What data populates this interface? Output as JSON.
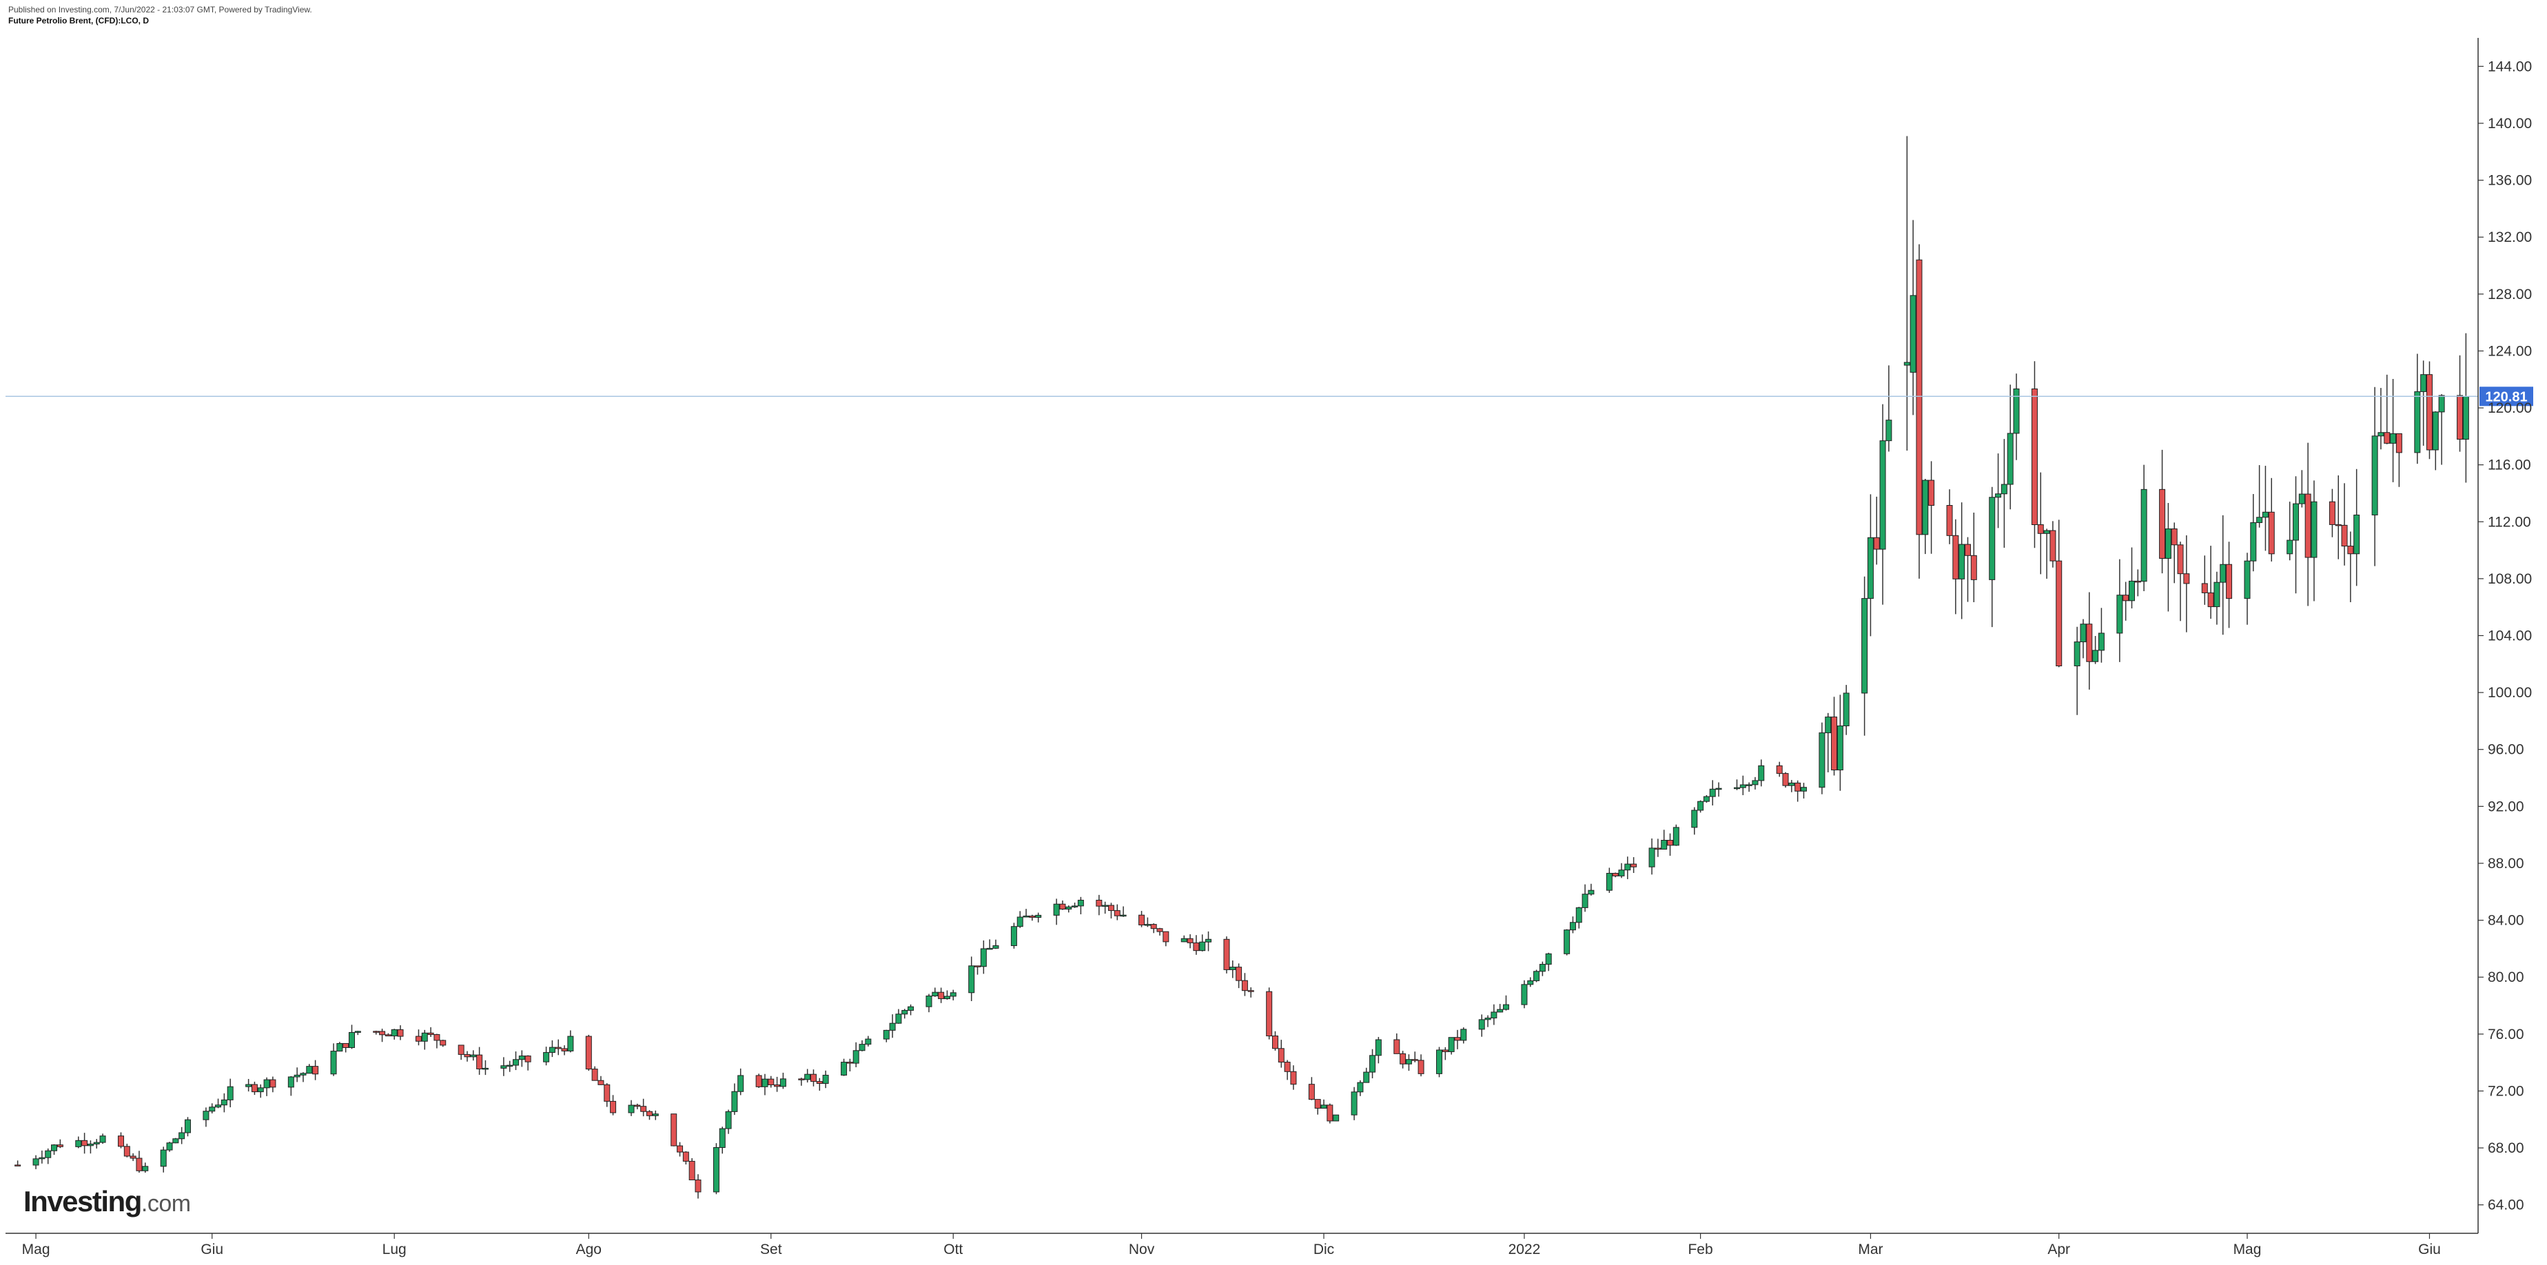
{
  "header": {
    "published": "Published on Investing.com, 7/Jun/2022 - 21:03:07 GMT, Powered by TradingView.",
    "title": "Future Petrolio Brent, (CFD):LCO, D"
  },
  "logo": {
    "brand": "Investing",
    "suffix": ".com"
  },
  "colors": {
    "up": "#1fa463",
    "down": "#e05252",
    "wick": "#333333",
    "price_line": "#a9c6e2",
    "price_tag": "#3a6fd8",
    "axis": "#333333"
  },
  "chart_data": {
    "type": "candlestick",
    "title": "Future Petrolio Brent, (CFD):LCO, D",
    "xlabel": "",
    "ylabel": "",
    "ylim": [
      62,
      146
    ],
    "y_ticks": [
      "64.00",
      "68.00",
      "72.00",
      "76.00",
      "80.00",
      "84.00",
      "88.00",
      "92.00",
      "96.00",
      "100.00",
      "104.00",
      "108.00",
      "112.00",
      "116.00",
      "120.00",
      "124.00",
      "128.00",
      "132.00",
      "136.00",
      "140.00",
      "144.00"
    ],
    "x_ticks": [
      {
        "label": "Mag",
        "date": "2021-05-03"
      },
      {
        "label": "Giu",
        "date": "2021-06-01"
      },
      {
        "label": "Lug",
        "date": "2021-07-01"
      },
      {
        "label": "Ago",
        "date": "2021-08-02"
      },
      {
        "label": "Set",
        "date": "2021-09-01"
      },
      {
        "label": "Ott",
        "date": "2021-10-01"
      },
      {
        "label": "Nov",
        "date": "2021-11-01"
      },
      {
        "label": "Dic",
        "date": "2021-12-01"
      },
      {
        "label": "2022",
        "date": "2022-01-03"
      },
      {
        "label": "Feb",
        "date": "2022-02-01"
      },
      {
        "label": "Mar",
        "date": "2022-03-01"
      },
      {
        "label": "Apr",
        "date": "2022-04-01"
      },
      {
        "label": "Mag",
        "date": "2022-05-02"
      },
      {
        "label": "Giu",
        "date": "2022-06-01"
      }
    ],
    "x_range": [
      "2021-04-28",
      "2022-06-09"
    ],
    "last_price": 120.81,
    "last_price_label": "120.81",
    "weekly_closes": [
      {
        "date": "2021-04-30",
        "close": 66.8
      },
      {
        "date": "2021-05-07",
        "close": 68.3
      },
      {
        "date": "2021-05-14",
        "close": 68.7
      },
      {
        "date": "2021-05-21",
        "close": 66.4
      },
      {
        "date": "2021-05-28",
        "close": 69.6
      },
      {
        "date": "2021-06-04",
        "close": 71.9
      },
      {
        "date": "2021-06-11",
        "close": 72.7
      },
      {
        "date": "2021-06-18",
        "close": 73.5
      },
      {
        "date": "2021-06-25",
        "close": 76.2
      },
      {
        "date": "2021-07-02",
        "close": 76.2
      },
      {
        "date": "2021-07-09",
        "close": 75.6
      },
      {
        "date": "2021-07-16",
        "close": 73.6
      },
      {
        "date": "2021-07-23",
        "close": 74.1
      },
      {
        "date": "2021-07-30",
        "close": 75.4
      },
      {
        "date": "2021-08-06",
        "close": 70.7
      },
      {
        "date": "2021-08-13",
        "close": 70.6
      },
      {
        "date": "2021-08-20",
        "close": 65.2
      },
      {
        "date": "2021-08-27",
        "close": 72.7
      },
      {
        "date": "2021-09-03",
        "close": 72.6
      },
      {
        "date": "2021-09-10",
        "close": 72.9
      },
      {
        "date": "2021-09-17",
        "close": 75.3
      },
      {
        "date": "2021-09-24",
        "close": 78.1
      },
      {
        "date": "2021-10-01",
        "close": 79.3
      },
      {
        "date": "2021-10-08",
        "close": 82.4
      },
      {
        "date": "2021-10-15",
        "close": 84.8
      },
      {
        "date": "2021-10-22",
        "close": 85.5
      },
      {
        "date": "2021-10-29",
        "close": 84.4
      },
      {
        "date": "2021-11-05",
        "close": 82.7
      },
      {
        "date": "2021-11-12",
        "close": 82.2
      },
      {
        "date": "2021-11-19",
        "close": 78.9
      },
      {
        "date": "2021-11-26",
        "close": 72.7
      },
      {
        "date": "2021-12-03",
        "close": 69.9
      },
      {
        "date": "2021-12-10",
        "close": 75.2
      },
      {
        "date": "2021-12-17",
        "close": 73.5
      },
      {
        "date": "2021-12-24",
        "close": 76.1
      },
      {
        "date": "2021-12-31",
        "close": 77.8
      },
      {
        "date": "2022-01-07",
        "close": 81.8
      },
      {
        "date": "2022-01-14",
        "close": 86.1
      },
      {
        "date": "2022-01-21",
        "close": 87.9
      },
      {
        "date": "2022-01-28",
        "close": 90.0
      },
      {
        "date": "2022-02-04",
        "close": 93.3
      },
      {
        "date": "2022-02-11",
        "close": 94.4
      },
      {
        "date": "2022-02-18",
        "close": 93.5
      },
      {
        "date": "2022-02-25",
        "close": 97.9
      },
      {
        "date": "2022-03-04",
        "close": 118.1
      },
      {
        "date": "2022-03-11",
        "close": 112.7
      },
      {
        "date": "2022-03-18",
        "close": 107.9
      },
      {
        "date": "2022-03-25",
        "close": 120.6
      },
      {
        "date": "2022-04-01",
        "close": 104.4
      },
      {
        "date": "2022-04-08",
        "close": 102.8
      },
      {
        "date": "2022-04-15",
        "close": 111.7
      },
      {
        "date": "2022-04-22",
        "close": 106.7
      },
      {
        "date": "2022-04-29",
        "close": 109.3
      },
      {
        "date": "2022-05-06",
        "close": 112.4
      },
      {
        "date": "2022-05-13",
        "close": 111.6
      },
      {
        "date": "2022-05-20",
        "close": 112.6
      },
      {
        "date": "2022-05-27",
        "close": 119.4
      },
      {
        "date": "2022-06-03",
        "close": 119.7
      },
      {
        "date": "2022-06-07",
        "close": 120.8
      }
    ],
    "spikes": [
      {
        "date": "2022-03-07",
        "open": 123.0,
        "high": 139.1,
        "low": 117.0,
        "close": 123.2
      },
      {
        "date": "2022-03-08",
        "open": 122.5,
        "high": 133.2,
        "low": 119.5,
        "close": 127.9
      },
      {
        "date": "2022-03-09",
        "open": 130.4,
        "high": 131.5,
        "low": 108.0,
        "close": 111.1
      }
    ]
  }
}
